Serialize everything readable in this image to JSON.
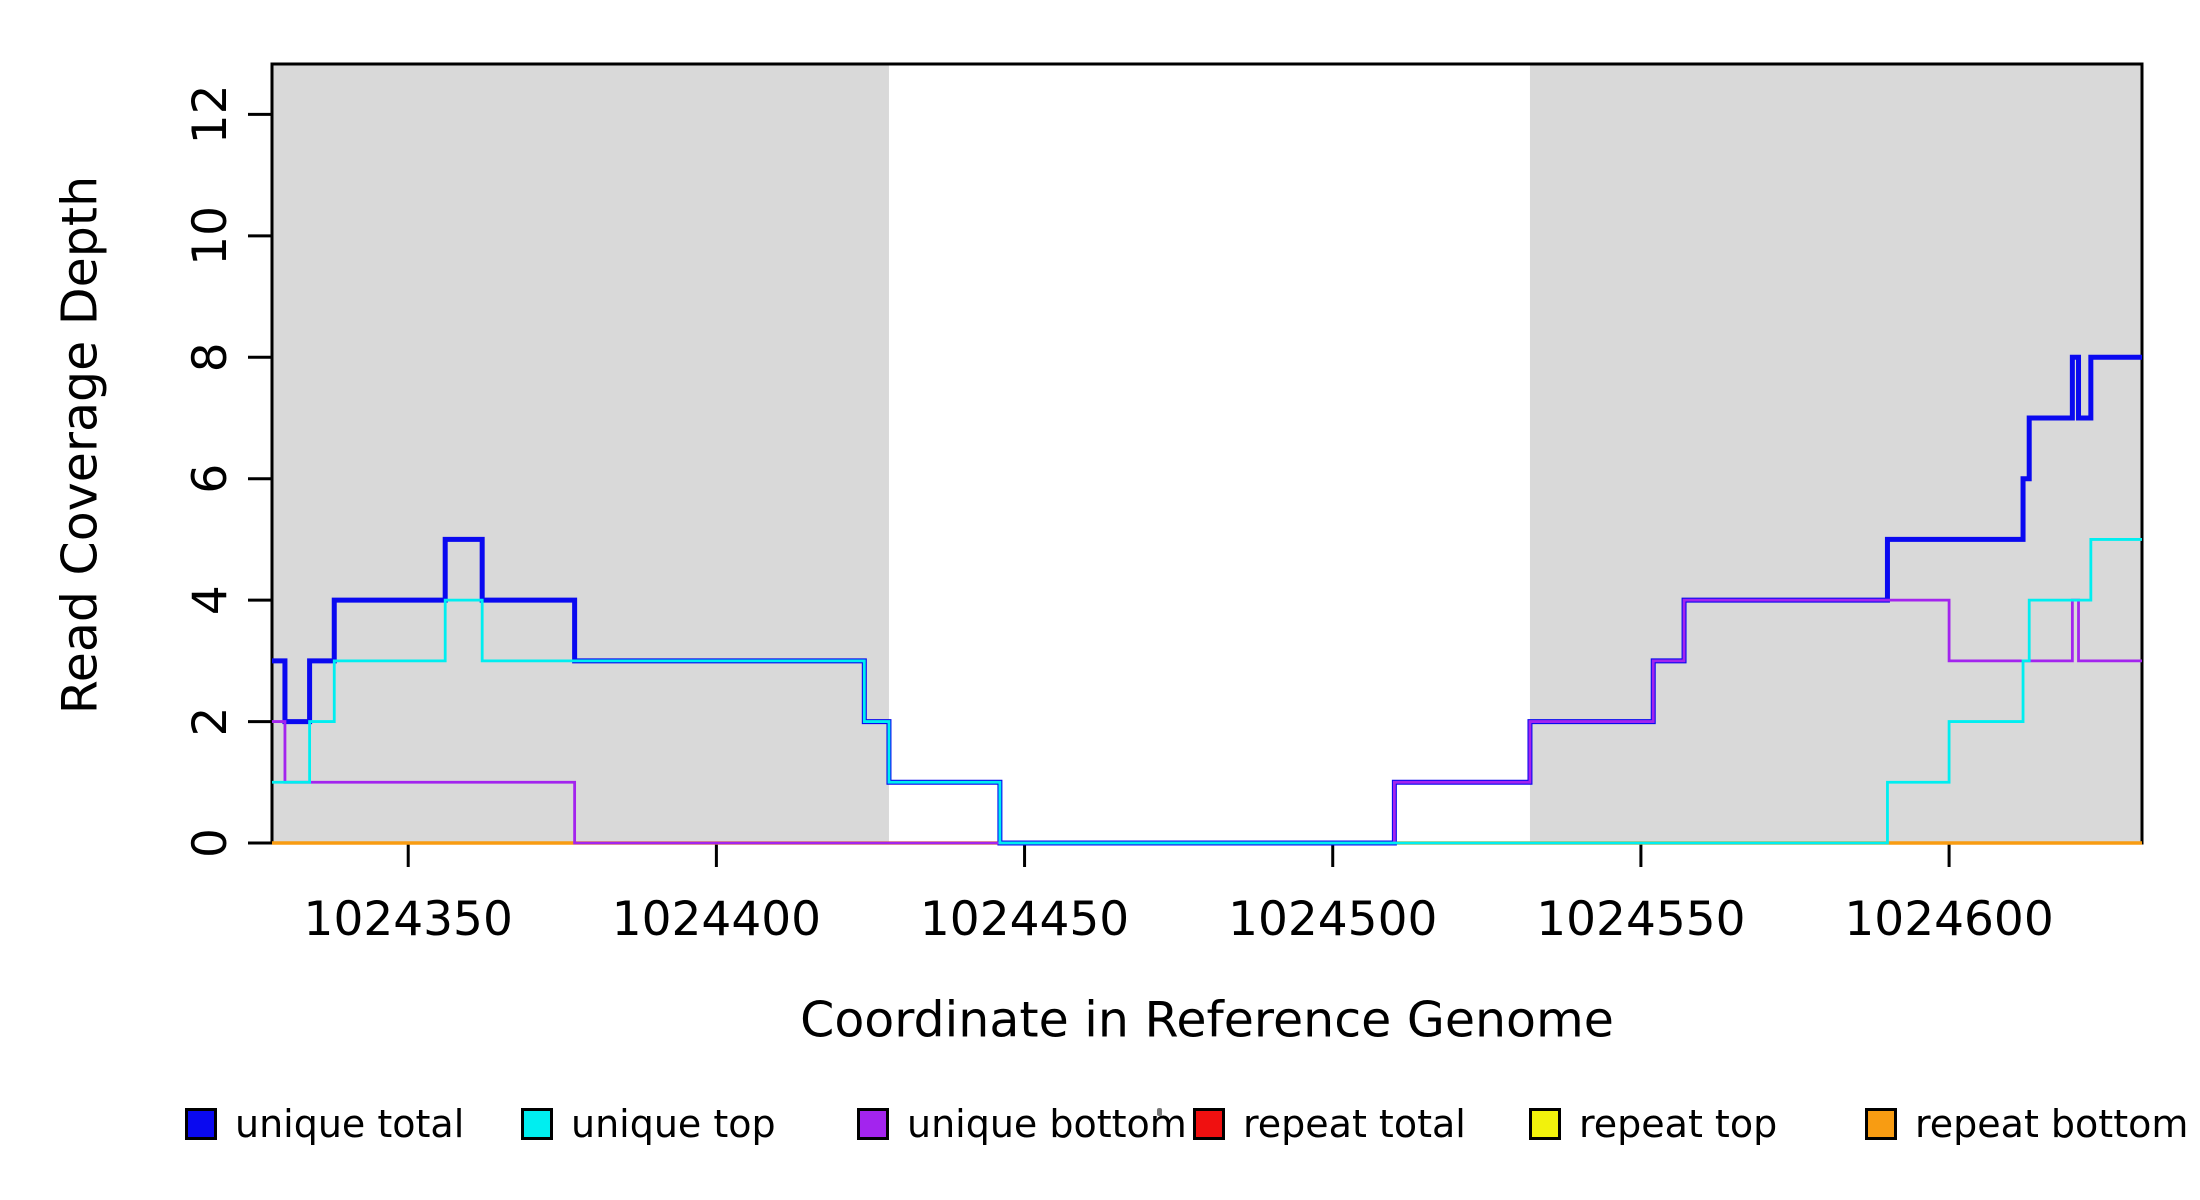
{
  "chart_data": {
    "type": "line",
    "subtype": "step",
    "title": "",
    "xlabel": "Coordinate in Reference Genome",
    "ylabel": "Read Coverage Depth",
    "x_range": [
      1024327.9,
      1024631.3
    ],
    "y_range": [
      0,
      12.83
    ],
    "x_ticks": [
      1024350,
      1024400,
      1024450,
      1024500,
      1024550,
      1024600
    ],
    "y_ticks": [
      0,
      2,
      4,
      6,
      8,
      10,
      12
    ],
    "grid": false,
    "legend_position": "bottom",
    "plot_background": "#ffffff",
    "shaded_region_color": "#d9d9d9",
    "shaded_regions": [
      {
        "from": 1024327.9,
        "to": 1024428
      },
      {
        "from": 1024532,
        "to": 1024631.3
      }
    ],
    "series": [
      {
        "name": "unique total",
        "color": "#0a09f0",
        "width": 5,
        "z": 3,
        "start": 3,
        "steps": [
          [
            1024330,
            2
          ],
          [
            1024334,
            3
          ],
          [
            1024338,
            4
          ],
          [
            1024356,
            5
          ],
          [
            1024362,
            4
          ],
          [
            1024377,
            3
          ],
          [
            1024424,
            2
          ],
          [
            1024428,
            1
          ],
          [
            1024446,
            0
          ],
          [
            1024510,
            1
          ],
          [
            1024532,
            2
          ],
          [
            1024552,
            3
          ],
          [
            1024557,
            4
          ],
          [
            1024590,
            5
          ],
          [
            1024612,
            6
          ],
          [
            1024613,
            7
          ],
          [
            1024620,
            8
          ],
          [
            1024621,
            7
          ],
          [
            1024623,
            8
          ]
        ]
      },
      {
        "name": "unique top",
        "color": "#00eef0",
        "width": 2.8,
        "z": 5,
        "start": 1,
        "steps": [
          [
            1024334,
            2
          ],
          [
            1024338,
            3
          ],
          [
            1024356,
            4
          ],
          [
            1024362,
            3
          ],
          [
            1024424,
            2
          ],
          [
            1024428,
            1
          ],
          [
            1024446,
            0
          ],
          [
            1024590,
            1
          ],
          [
            1024600,
            2
          ],
          [
            1024612,
            3
          ],
          [
            1024613,
            4
          ],
          [
            1024623,
            5
          ]
        ]
      },
      {
        "name": "unique bottom",
        "color": "#a324ee",
        "width": 2.8,
        "z": 4,
        "start": 2,
        "steps": [
          [
            1024330,
            1
          ],
          [
            1024377,
            0
          ],
          [
            1024510,
            1
          ],
          [
            1024532,
            2
          ],
          [
            1024552,
            3
          ],
          [
            1024557,
            4
          ],
          [
            1024600,
            3
          ],
          [
            1024620,
            4
          ],
          [
            1024621,
            3
          ]
        ]
      },
      {
        "name": "repeat total",
        "color": "#f01010",
        "width": 2.8,
        "z": 0,
        "start": 0,
        "steps": []
      },
      {
        "name": "repeat top",
        "color": "#f2f20c",
        "width": 2.8,
        "z": 1,
        "start": 0,
        "steps": []
      },
      {
        "name": "repeat bottom",
        "color": "#f89c12",
        "width": 3.5,
        "z": 2,
        "start": 0,
        "steps": []
      }
    ]
  }
}
